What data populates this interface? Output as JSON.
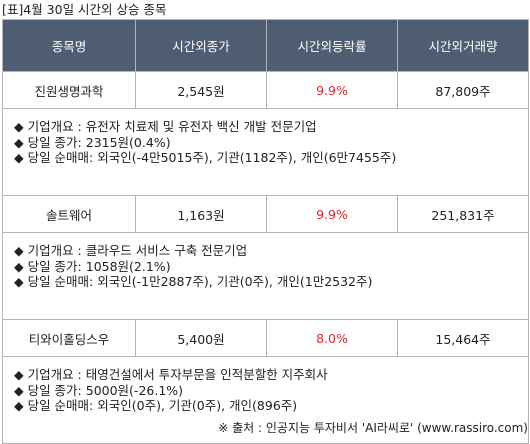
{
  "caption": "[표]4월 30일 시간외 상승 종목",
  "headers": [
    "종목명",
    "시간외종가",
    "시간외등락률",
    "시간외거래량"
  ],
  "rows": [
    {
      "name": "진원생명과학",
      "price": "2,545원",
      "change": "9.9%",
      "volume": "87,809주",
      "details": [
        "◆ 기업개요 : 유전자 치료제 및 유전자 백신 개발 전문기업",
        "◆ 당일 종가: 2315원(0.4%)",
        "◆ 당일 순매매: 외국인(-4만5015주), 기관(1182주), 개인(6만7455주)"
      ]
    },
    {
      "name": "솔트웨어",
      "price": "1,163원",
      "change": "9.9%",
      "volume": "251,831주",
      "details": [
        "◆ 기업개요 : 클라우드 서비스 구축 전문기업",
        "◆ 당일 종가: 1058원(2.1%)",
        "◆ 당일 순매매: 외국인(-1만2887주), 기관(0주), 개인(1만2532주)"
      ]
    },
    {
      "name": "티와이홀딩스우",
      "price": "5,400원",
      "change": "8.0%",
      "volume": "15,464주",
      "details": [
        "◆ 기업개요 : 태영건설에서 투자부문을 인적분할한 지주회사",
        "◆ 당일 종가: 5000원(-26.1%)",
        "◆ 당일 순매매: 외국인(0주), 기관(0주), 개인(896주)"
      ]
    }
  ],
  "source": "※ 출처 : 인공지능 투자비서 'AI라씨로' (www.rassiro.com)",
  "colors": {
    "header_bg": "#4f5d73",
    "rate_up": "#e0282a",
    "border": "#b4b4b4"
  }
}
